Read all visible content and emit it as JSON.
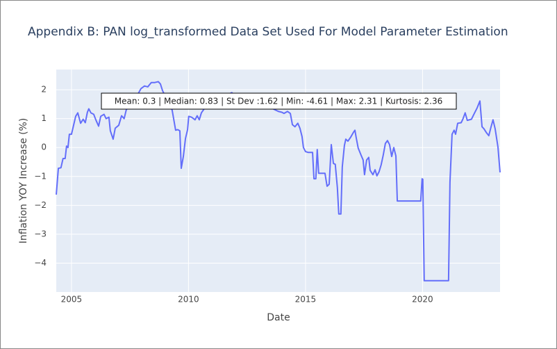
{
  "chart_data": {
    "type": "line",
    "title": "Appendix B: PAN log_transformed Data Set Used For Model Parameter Estimation",
    "x_label": "Date",
    "y_label": "Inflation YOY Increase (%)",
    "annotation": "Mean: 0.3 | Median: 0.83 | St Dev :1.62 | Min: -4.61 | Max: 2.31 | Kurtosis: 2.36",
    "xlim": [
      2004.35,
      2023.31
    ],
    "ylim": [
      -5,
      2.7
    ],
    "xticks": [
      2005,
      2010,
      2015,
      2020
    ],
    "yticks": [
      2,
      1,
      0,
      {
        "value": -1,
        "label": "−1"
      },
      {
        "value": -2,
        "label": "−2"
      },
      {
        "value": -3,
        "label": "−3"
      },
      {
        "value": -4,
        "label": "−4"
      }
    ],
    "grid": true,
    "x": [
      2004.35,
      2004.44,
      2004.55,
      2004.64,
      2004.73,
      2004.79,
      2004.85,
      2004.91,
      2005.0,
      2005.09,
      2005.18,
      2005.27,
      2005.39,
      2005.5,
      2005.59,
      2005.68,
      2005.74,
      2005.83,
      2005.95,
      2006.04,
      2006.16,
      2006.25,
      2006.39,
      2006.48,
      2006.6,
      2006.66,
      2006.78,
      2006.87,
      2007.02,
      2007.14,
      2007.25,
      2007.34,
      2007.46,
      2007.58,
      2007.76,
      2007.97,
      2008.12,
      2008.26,
      2008.41,
      2008.56,
      2008.71,
      2008.8,
      2008.89,
      2009.01,
      2009.15,
      2009.3,
      2009.45,
      2009.54,
      2009.63,
      2009.69,
      2009.78,
      2009.87,
      2009.96,
      2010.01,
      2010.13,
      2010.28,
      2010.37,
      2010.46,
      2010.55,
      2010.67,
      2010.85,
      2011.14,
      2011.44,
      2011.85,
      2012.12,
      2012.33,
      2012.51,
      2012.92,
      2013.37,
      2013.66,
      2013.84,
      2013.99,
      2014.08,
      2014.23,
      2014.35,
      2014.44,
      2014.55,
      2014.67,
      2014.76,
      2014.85,
      2014.91,
      2015.0,
      2015.12,
      2015.3,
      2015.36,
      2015.44,
      2015.5,
      2015.56,
      2015.68,
      2015.83,
      2015.92,
      2016.01,
      2016.1,
      2016.19,
      2016.27,
      2016.36,
      2016.42,
      2016.51,
      2016.57,
      2016.66,
      2016.72,
      2016.81,
      2016.93,
      2017.05,
      2017.11,
      2017.16,
      2017.25,
      2017.37,
      2017.46,
      2017.52,
      2017.61,
      2017.7,
      2017.76,
      2017.88,
      2017.97,
      2018.05,
      2018.14,
      2018.23,
      2018.32,
      2018.41,
      2018.5,
      2018.59,
      2018.68,
      2018.77,
      2018.86,
      2018.92,
      2019.3,
      2019.75,
      2019.92,
      2019.98,
      2020.01,
      2020.07,
      2020.49,
      2020.93,
      2021.11,
      2021.17,
      2021.26,
      2021.35,
      2021.41,
      2021.5,
      2021.65,
      2021.73,
      2021.82,
      2021.91,
      2022.09,
      2022.21,
      2022.33,
      2022.45,
      2022.54,
      2022.62,
      2022.74,
      2022.83,
      2022.92,
      2023.01,
      2023.1,
      2023.22,
      2023.31
    ],
    "series": [
      {
        "color": "#636efa",
        "values": [
          -1.63,
          -0.72,
          -0.7,
          -0.38,
          -0.38,
          0.05,
          0,
          0.46,
          0.46,
          0.77,
          1.08,
          1.2,
          0.84,
          0.98,
          0.86,
          1.22,
          1.34,
          1.2,
          1.15,
          0.96,
          0.74,
          1.08,
          1.15,
          1.0,
          1.05,
          0.58,
          0.29,
          0.67,
          0.77,
          1.1,
          1.0,
          1.3,
          1.46,
          1.56,
          1.73,
          2.04,
          2.13,
          2.1,
          2.25,
          2.25,
          2.28,
          2.2,
          1.97,
          1.77,
          1.49,
          1.3,
          0.6,
          0.62,
          0.58,
          -0.72,
          -0.31,
          0.31,
          0.62,
          1.08,
          1.05,
          0.96,
          1.1,
          0.96,
          1.2,
          1.34,
          1.49,
          1.6,
          1.75,
          1.9,
          1.7,
          1.49,
          1.34,
          1.49,
          1.44,
          1.32,
          1.25,
          1.22,
          1.18,
          1.25,
          1.18,
          0.79,
          0.72,
          0.84,
          0.67,
          0.38,
          0,
          -0.14,
          -0.17,
          -0.17,
          -1.08,
          -1.08,
          -0.07,
          -0.89,
          -0.89,
          -0.89,
          -1.34,
          -1.27,
          0.1,
          -0.55,
          -0.58,
          -1.39,
          -2.3,
          -2.3,
          -0.67,
          0.07,
          0.29,
          0.22,
          0.36,
          0.53,
          0.6,
          0.36,
          -0.02,
          -0.26,
          -0.43,
          -0.94,
          -0.43,
          -0.34,
          -0.79,
          -0.94,
          -0.77,
          -0.98,
          -0.84,
          -0.6,
          -0.26,
          0.14,
          0.24,
          0.1,
          -0.31,
          0,
          -0.29,
          -1.85,
          -1.85,
          -1.85,
          -1.85,
          -1.08,
          -1.1,
          -4.61,
          -4.61,
          -4.61,
          -4.61,
          -1.2,
          0.46,
          0.6,
          0.46,
          0.84,
          0.86,
          1.0,
          1.2,
          0.94,
          0.98,
          1.18,
          1.37,
          1.61,
          0.72,
          0.65,
          0.5,
          0.41,
          0.7,
          0.96,
          0.65,
          0.02,
          -0.86
        ]
      }
    ]
  }
}
